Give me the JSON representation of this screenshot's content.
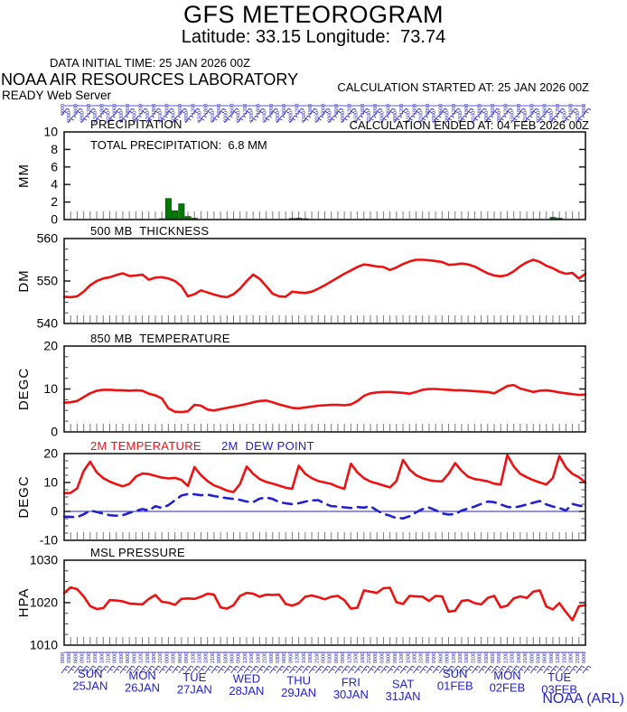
{
  "header": {
    "title": "GFS METEOROGRAM",
    "subtitle": "Latitude: 33.15 Longitude:  73.74",
    "data_initial_time": "DATA INITIAL TIME: 25 JAN 2026 00Z",
    "calc_started": "CALCULATION STARTED AT: 25 JAN 2026 00Z",
    "calc_ended": "CALCULATION ENDED AT: 04 FEB 2026 00Z",
    "org": "NOAA AIR RESOURCES LABORATORY",
    "server": "READY Web Server"
  },
  "footer": {
    "credit": "NOAA (ARL)"
  },
  "colors": {
    "red": "#ee1111",
    "blue": "#2222cc",
    "green": "#007a00",
    "axis": "#1a1a1a",
    "hour_tick": "#7a7a7a"
  },
  "chart_data": {
    "type": "line",
    "x_axis": {
      "start": "25 JAN 2026 00Z",
      "end": "04 FEB 2026 00Z",
      "step_hours": 3,
      "total_hours": 240,
      "day_labels": [
        {
          "dow": "SUN",
          "date": "25JAN"
        },
        {
          "dow": "MON",
          "date": "26JAN"
        },
        {
          "dow": "TUE",
          "date": "27JAN"
        },
        {
          "dow": "WED",
          "date": "28JAN"
        },
        {
          "dow": "THU",
          "date": "29JAN"
        },
        {
          "dow": "FRI",
          "date": "30JAN"
        },
        {
          "dow": "SAT",
          "date": "31JAN"
        },
        {
          "dow": "SUN",
          "date": "01FEB"
        },
        {
          "dow": "MON",
          "date": "02FEB"
        },
        {
          "dow": "TUE",
          "date": "03FEB"
        }
      ]
    },
    "panels": [
      {
        "id": "precip",
        "type": "bar",
        "title": "PRECIPITATION",
        "annotation": "TOTAL PRECIPITATION:  6.8 MM",
        "unit": "MM",
        "ylim": [
          0,
          10
        ],
        "yticks": [
          0,
          2,
          4,
          6,
          8,
          10
        ],
        "color": "#007a00",
        "values": [
          0,
          0,
          0,
          0,
          0,
          0,
          0,
          0,
          0,
          0,
          0,
          0,
          0.05,
          0.05,
          0.08,
          0.1,
          2.4,
          1.0,
          1.8,
          0.35,
          0.15,
          0,
          0,
          0,
          0,
          0,
          0,
          0,
          0,
          0,
          0,
          0,
          0,
          0,
          0,
          0.12,
          0.15,
          0.1,
          0.05,
          0,
          0,
          0,
          0,
          0,
          0,
          0,
          0,
          0,
          0,
          0,
          0,
          0,
          0,
          0,
          0,
          0,
          0,
          0,
          0,
          0,
          0,
          0,
          0,
          0,
          0,
          0,
          0,
          0,
          0,
          0,
          0,
          0,
          0,
          0,
          0,
          0.25,
          0.15,
          0,
          0,
          0,
          0
        ]
      },
      {
        "id": "thickness",
        "type": "line",
        "title": "500 MB  THICKNESS",
        "unit": "DM",
        "ylim": [
          540,
          560
        ],
        "yticks": [
          540,
          550,
          560
        ],
        "yminor_step": 2.5,
        "color": "#ee1111",
        "values": [
          546.3,
          546.2,
          546.4,
          547.5,
          549.0,
          550.0,
          550.6,
          550.9,
          551.4,
          551.8,
          551.2,
          551.3,
          551.5,
          550.3,
          550.8,
          550.9,
          550.6,
          550.0,
          548.8,
          546.4,
          546.9,
          547.8,
          547.3,
          546.8,
          546.4,
          546.2,
          546.9,
          548.2,
          550.0,
          551.5,
          550.5,
          548.8,
          547.0,
          546.4,
          546.3,
          547.5,
          547.3,
          547.2,
          547.5,
          548.2,
          549.0,
          549.9,
          550.8,
          551.7,
          552.5,
          553.3,
          553.9,
          553.7,
          553.4,
          553.3,
          552.6,
          553.2,
          554.0,
          554.6,
          555.0,
          555.0,
          554.9,
          554.7,
          554.5,
          553.8,
          553.9,
          554.1,
          553.9,
          553.4,
          552.6,
          551.8,
          551.3,
          551.1,
          551.4,
          552.3,
          553.5,
          554.4,
          555.0,
          554.5,
          553.6,
          553.0,
          552.2,
          551.7,
          551.9,
          550.6,
          551.7
        ]
      },
      {
        "id": "t850",
        "type": "line",
        "title": "850 MB  TEMPERATURE",
        "unit": "DEGC",
        "ylim": [
          0,
          20
        ],
        "yticks": [
          0,
          10,
          20
        ],
        "yminor_step": 2.5,
        "color": "#ee1111",
        "values": [
          6.8,
          6.9,
          7.2,
          8.1,
          9.0,
          9.6,
          9.8,
          9.8,
          9.7,
          9.7,
          9.6,
          9.7,
          9.6,
          8.9,
          8.5,
          7.8,
          5.5,
          4.7,
          4.6,
          4.8,
          6.3,
          6.1,
          5.2,
          5.0,
          5.3,
          5.6,
          5.9,
          6.2,
          6.5,
          6.9,
          7.2,
          7.3,
          6.9,
          6.4,
          6.0,
          5.6,
          5.5,
          5.7,
          5.9,
          6.1,
          6.2,
          6.3,
          6.3,
          6.2,
          6.4,
          7.2,
          8.4,
          9.0,
          9.2,
          9.3,
          9.3,
          9.2,
          9.1,
          8.9,
          9.3,
          9.8,
          10.0,
          10.0,
          9.9,
          9.8,
          9.7,
          9.7,
          9.6,
          9.5,
          9.4,
          9.3,
          9.0,
          9.8,
          10.7,
          10.9,
          10.1,
          9.7,
          9.3,
          9.6,
          9.7,
          9.5,
          9.2,
          9.0,
          8.8,
          8.6,
          8.7
        ]
      },
      {
        "id": "t2m",
        "type": "multiline",
        "title": "2M TEMPERATURE",
        "title2": "2M  DEW POINT",
        "unit": "DEGC",
        "ylim": [
          -10,
          20
        ],
        "yticks": [
          -10,
          0,
          10,
          20
        ],
        "yminor_step": 2.5,
        "zeroline": true,
        "series": [
          {
            "name": "2M TEMPERATURE",
            "color": "#ee1111",
            "style": "solid",
            "values": [
              6.3,
              6.4,
              8.0,
              14.0,
              17.2,
              13.5,
              11.5,
              10.3,
              9.4,
              8.7,
              9.5,
              12.0,
              13.1,
              12.9,
              12.3,
              11.7,
              11.4,
              11.6,
              10.9,
              8.8,
              15.3,
              12.5,
              10.5,
              9.0,
              8.2,
              7.2,
              6.7,
              9.5,
              15.5,
              13.0,
              11.2,
              10.2,
              9.6,
              8.9,
              8.2,
              7.8,
              15.8,
              13.0,
              11.5,
              10.5,
              10.0,
              9.5,
              8.5,
              7.8,
              16.5,
              13.5,
              11.5,
              10.3,
              9.7,
              9.0,
              8.3,
              10.5,
              17.8,
              14.5,
              12.5,
              11.5,
              10.8,
              10.5,
              10.4,
              13.0,
              16.7,
              14.0,
              12.0,
              11.2,
              10.8,
              10.4,
              9.6,
              9.3,
              19.5,
              15.5,
              13.0,
              11.8,
              10.8,
              10.0,
              9.3,
              11.5,
              19.2,
              15.2,
              13.0,
              11.8,
              10.0
            ]
          },
          {
            "name": "2M DEW POINT",
            "color": "#2222cc",
            "style": "dashed",
            "values": [
              -1.8,
              -1.9,
              -2.0,
              -1.0,
              0.3,
              -0.2,
              -0.8,
              -1.3,
              -1.5,
              -1.3,
              -0.5,
              0.2,
              0.8,
              0.3,
              1.8,
              1.2,
              2.2,
              3.8,
              5.5,
              6.0,
              5.9,
              5.6,
              5.8,
              5.3,
              4.9,
              4.6,
              4.3,
              4.0,
              3.4,
              3.2,
              4.4,
              4.8,
              4.3,
              3.2,
              2.8,
              2.5,
              2.8,
              3.4,
              3.8,
              3.9,
              2.7,
              1.8,
              1.7,
              1.4,
              1.2,
              1.5,
              1.3,
              1.8,
              0.3,
              -0.8,
              -1.5,
              -2.3,
              -2.4,
              -1.7,
              -0.3,
              0.8,
              1.3,
              0.4,
              -0.7,
              -1.1,
              -0.9,
              0.3,
              1.0,
              1.7,
              2.6,
              3.4,
              3.2,
              2.4,
              1.6,
              1.3,
              1.8,
              2.4,
              3.0,
              3.6,
              2.4,
              1.7,
              1.2,
              0.3,
              2.6,
              2.0,
              1.7
            ]
          }
        ]
      },
      {
        "id": "mslp",
        "type": "line",
        "title": "MSL PRESSURE",
        "unit": "HPA",
        "ylim": [
          1010,
          1030
        ],
        "yticks": [
          1010,
          1020,
          1030
        ],
        "yminor_step": 2.5,
        "color": "#ee1111",
        "values": [
          1022.3,
          1023.6,
          1023.2,
          1021.5,
          1019.2,
          1018.5,
          1018.7,
          1020.6,
          1020.5,
          1020.3,
          1019.8,
          1019.7,
          1019.6,
          1020.9,
          1021.8,
          1020.2,
          1020.0,
          1019.5,
          1020.9,
          1021.0,
          1020.9,
          1021.4,
          1022.1,
          1021.9,
          1018.9,
          1018.6,
          1019.4,
          1021.6,
          1022.3,
          1022.1,
          1021.4,
          1021.9,
          1021.8,
          1021.9,
          1019.7,
          1019.3,
          1019.9,
          1021.4,
          1021.7,
          1021.3,
          1020.8,
          1021.4,
          1021.6,
          1020.6,
          1018.6,
          1018.8,
          1022.9,
          1022.6,
          1022.3,
          1023.4,
          1023.5,
          1020.1,
          1019.7,
          1021.6,
          1021.5,
          1021.4,
          1020.4,
          1021.6,
          1021.5,
          1017.9,
          1018.1,
          1020.4,
          1020.6,
          1019.9,
          1019.6,
          1021.1,
          1021.6,
          1018.9,
          1019.3,
          1021.0,
          1021.5,
          1021.1,
          1022.6,
          1022.9,
          1019.1,
          1018.4,
          1019.9,
          1017.8,
          1015.9,
          1019.2,
          1019.4
        ]
      }
    ]
  }
}
